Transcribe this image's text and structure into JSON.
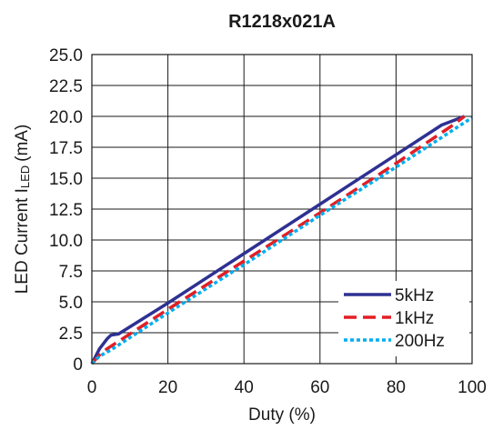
{
  "chart_data": {
    "type": "line",
    "title": "R1218x021A",
    "xlabel": "Duty (%)",
    "ylabel": "LED Current I",
    "ylabel_subscript": "LED",
    "ylabel_unit": "(mA)",
    "xlim": [
      0,
      100
    ],
    "ylim": [
      0,
      25
    ],
    "xticks": [
      0,
      20,
      40,
      60,
      80,
      100
    ],
    "xtick_labels": [
      "0",
      "20",
      "40",
      "60",
      "80",
      "100"
    ],
    "yticks": [
      0,
      2.5,
      5,
      7.5,
      10,
      12.5,
      15,
      17.5,
      20,
      22.5,
      25
    ],
    "ytick_labels": [
      "0",
      "2.5",
      "5.0",
      "7.5",
      "10.0",
      "12.5",
      "15.0",
      "17.5",
      "20.0",
      "22.5",
      "25.0"
    ],
    "grid": true,
    "legend_position": "bottom-right",
    "series": [
      {
        "name": "5kHz",
        "color": "#2e3192",
        "style": "solid",
        "x": [
          0,
          2,
          4,
          5,
          7,
          20,
          40,
          60,
          80,
          92,
          98
        ],
        "y": [
          0,
          1.2,
          2.0,
          2.3,
          2.4,
          4.9,
          8.9,
          12.9,
          16.9,
          19.3,
          20.0
        ]
      },
      {
        "name": "1kHz",
        "color": "#e31e24",
        "style": "dashed",
        "x": [
          0,
          2,
          4,
          6,
          20,
          40,
          60,
          80,
          95,
          98
        ],
        "y": [
          0,
          0.7,
          1.2,
          1.6,
          4.4,
          8.3,
          12.2,
          16.2,
          19.3,
          20.0
        ]
      },
      {
        "name": "200Hz",
        "color": "#00aeef",
        "style": "dotted",
        "x": [
          0,
          2,
          5,
          20,
          40,
          60,
          80,
          100
        ],
        "y": [
          0,
          0.6,
          1.1,
          4.1,
          8.0,
          12.0,
          15.9,
          19.9
        ]
      }
    ]
  }
}
